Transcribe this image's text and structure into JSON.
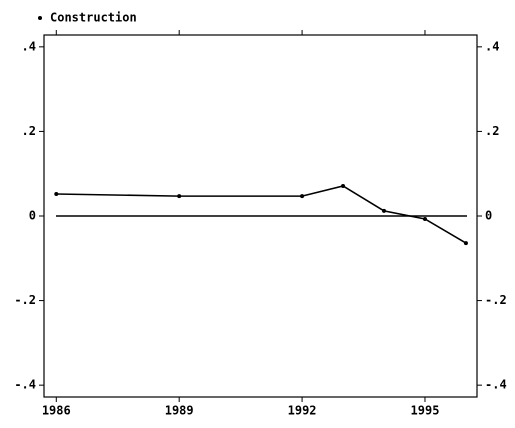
{
  "chart_data": {
    "type": "line",
    "x": [
      1986,
      1989,
      1992,
      1993,
      1994,
      1995,
      1996
    ],
    "series": [
      {
        "name": "Construction",
        "color": "#000000",
        "values": [
          0.052,
          0.047,
          0.047,
          0.071,
          0.012,
          -0.007,
          -0.064
        ]
      }
    ],
    "xlim": [
      1985.7,
      1996.27
    ],
    "xticks": [
      1986,
      1989,
      1992,
      1995
    ],
    "ylim": [
      -0.428,
      0.428
    ],
    "yticks": [
      {
        "value": 0.4,
        "label": ".4"
      },
      {
        "value": 0.2,
        "label": ".2"
      },
      0,
      {
        "value": -0.2,
        "label": "-.2"
      },
      {
        "value": -0.4,
        "label": "-.4"
      }
    ],
    "reference_line": 0,
    "legend": "top-left"
  }
}
